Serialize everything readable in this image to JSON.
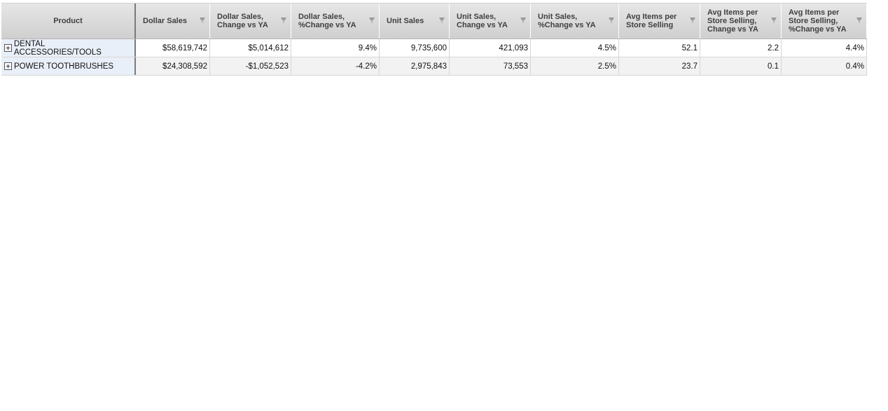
{
  "table": {
    "headers": [
      {
        "label": "Product"
      },
      {
        "label": "Dollar Sales"
      },
      {
        "label": "Dollar Sales, Change vs YA"
      },
      {
        "label": "Dollar Sales, %Change vs YA"
      },
      {
        "label": "Unit Sales"
      },
      {
        "label": "Unit Sales, Change vs YA"
      },
      {
        "label": "Unit Sales, %Change vs YA"
      },
      {
        "label": "Avg Items per Store Selling"
      },
      {
        "label": "Avg Items per Store Selling, Change vs YA"
      },
      {
        "label": "Avg Items per Store Selling, %Change vs YA"
      }
    ],
    "rows": [
      {
        "expand": "+",
        "product": "DENTAL ACCESSORIES/TOOLS",
        "values": [
          "$58,619,742",
          "$5,014,612",
          "9.4%",
          "9,735,600",
          "421,093",
          "4.5%",
          "52.1",
          "2.2",
          "4.4%"
        ]
      },
      {
        "expand": "+",
        "product": "POWER TOOTHBRUSHES",
        "values": [
          "$24,308,592",
          "-$1,052,523",
          "-4.2%",
          "2,975,843",
          "73,553",
          "2.5%",
          "23.7",
          "0.1",
          "0.4%"
        ]
      }
    ]
  }
}
